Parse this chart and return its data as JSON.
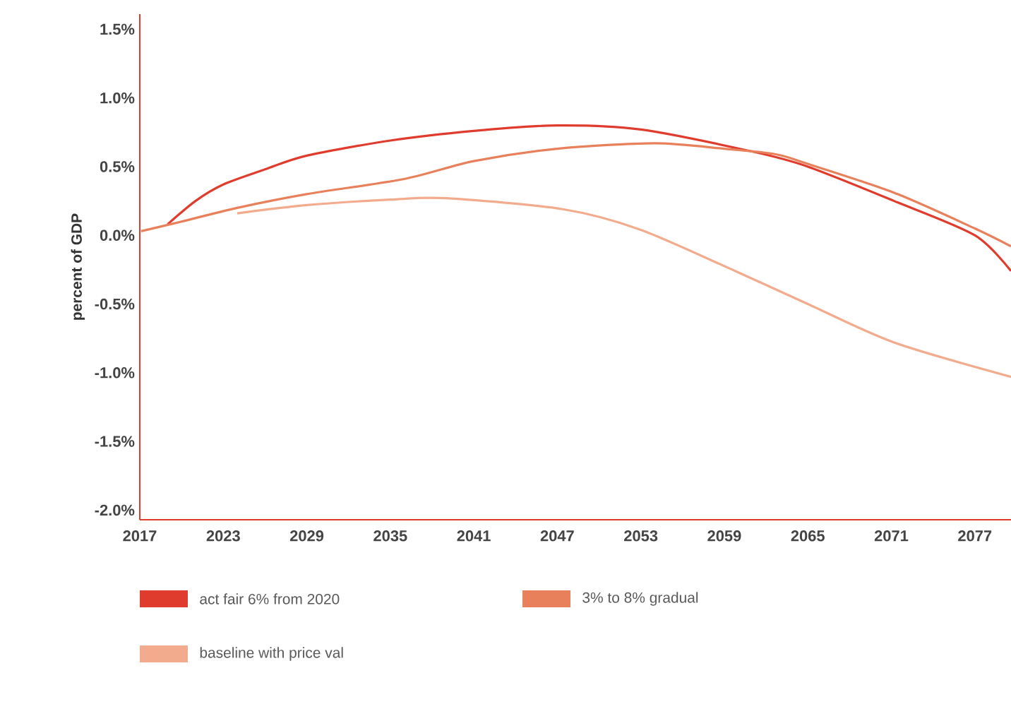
{
  "chart_data": {
    "type": "line",
    "ylabel": "percent of GDP",
    "xlim": [
      2017,
      2079.6
    ],
    "ylim": [
      -2.07,
      1.61
    ],
    "xticks": [
      2017,
      2023,
      2029,
      2035,
      2041,
      2047,
      2053,
      2059,
      2065,
      2071,
      2077
    ],
    "yticks": [
      {
        "value": -2.0,
        "label": "-2.0%"
      },
      {
        "value": -1.5,
        "label": "-1.5%"
      },
      {
        "value": -1.0,
        "label": "-1.0%"
      },
      {
        "value": -0.5,
        "label": "-0.5%"
      },
      {
        "value": 0.0,
        "label": "0.0%"
      },
      {
        "value": 0.5,
        "label": "0.5%"
      },
      {
        "value": 1.0,
        "label": "1.0%"
      },
      {
        "value": 1.5,
        "label": "1.5%"
      }
    ],
    "grid": false,
    "legend": "bottom",
    "marker": "none",
    "line_style": "solid",
    "series": [
      {
        "name": "act fair 6% from 2020",
        "color": "#e03c2d",
        "x": [
          2019,
          2021,
          2023,
          2026,
          2029,
          2035,
          2041,
          2047,
          2053,
          2061,
          2065,
          2071.2,
          2077,
          2079.6
        ],
        "values": [
          0.08,
          0.25,
          0.37,
          0.48,
          0.58,
          0.69,
          0.76,
          0.8,
          0.77,
          0.61,
          0.5,
          0.25,
          0.0,
          -0.26
        ]
      },
      {
        "name": "3% to 8% gradual",
        "color": "#e8805c",
        "x": [
          2017.1,
          2020,
          2024,
          2029,
          2036,
          2041,
          2047,
          2054,
          2059,
          2062.7,
          2065,
          2071.2,
          2077,
          2079.6
        ],
        "values": [
          0.03,
          0.1,
          0.2,
          0.3,
          0.41,
          0.54,
          0.63,
          0.67,
          0.63,
          0.59,
          0.52,
          0.31,
          0.05,
          -0.08
        ]
      },
      {
        "name": "baseline with price val",
        "color": "#f2ab8c",
        "x": [
          2024,
          2029,
          2035,
          2039,
          2047.4,
          2053,
          2060,
          2065,
          2071.2,
          2079.6
        ],
        "values": [
          0.16,
          0.22,
          0.26,
          0.27,
          0.19,
          0.04,
          -0.27,
          -0.5,
          -0.78,
          -1.03
        ]
      }
    ]
  }
}
